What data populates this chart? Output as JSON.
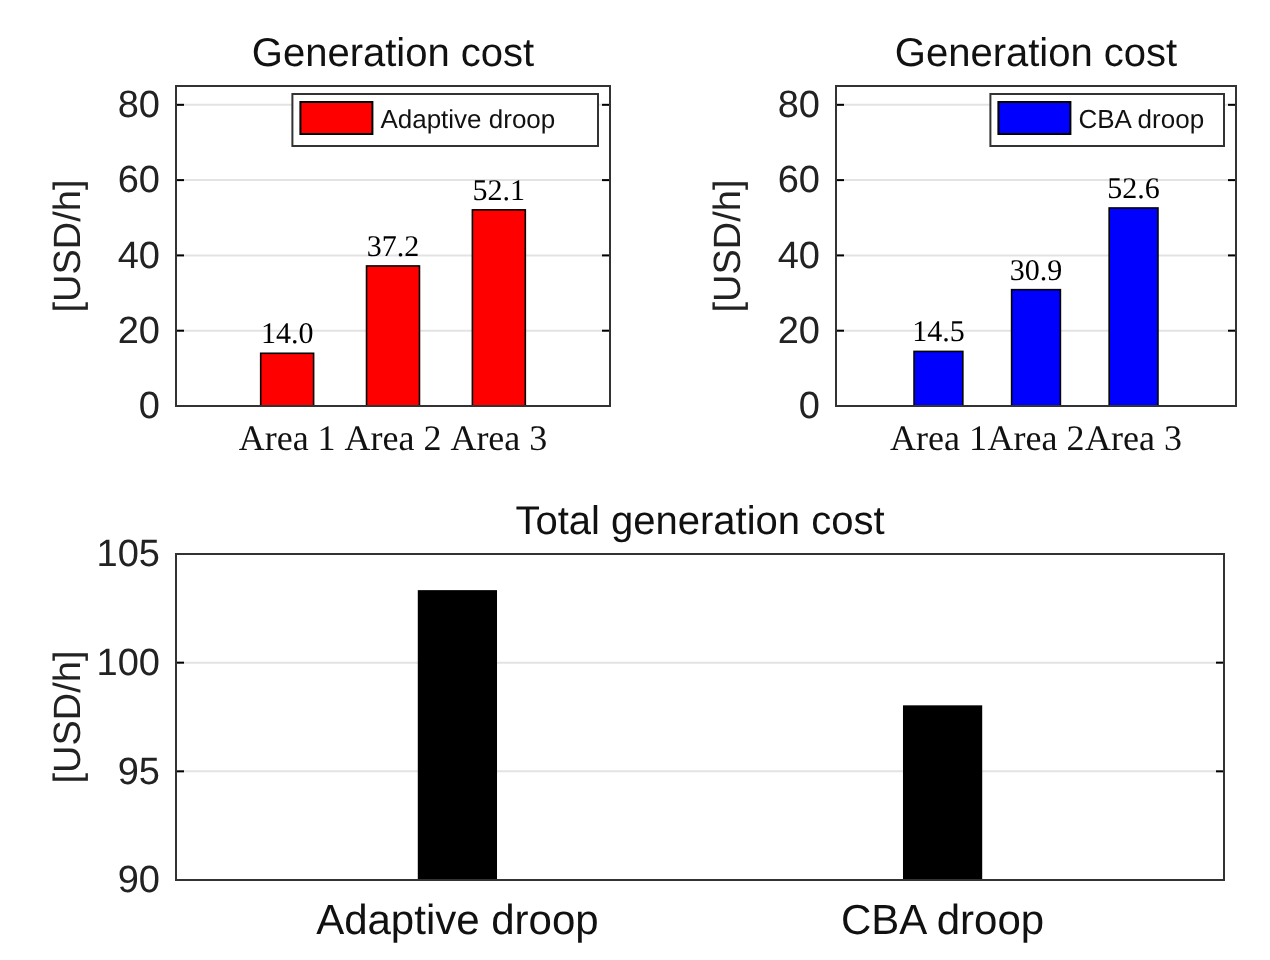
{
  "chart_data": [
    {
      "type": "bar",
      "title": "Generation cost",
      "ylabel": "[USD/h]",
      "categories": [
        "Area 1",
        "Area 2",
        "Area 3"
      ],
      "series": [
        {
          "name": "Adaptive droop",
          "color": "#ff0000",
          "values": [
            14.0,
            37.2,
            52.1
          ],
          "value_labels": [
            "14.0",
            "37.2",
            "52.1"
          ]
        }
      ],
      "ylim": [
        0,
        85
      ],
      "yticks": [
        0,
        20,
        40,
        60,
        80
      ],
      "grid": "y",
      "legend": "top right"
    },
    {
      "type": "bar",
      "title": "Generation cost",
      "ylabel": "[USD/h]",
      "categories": [
        "Area 1",
        "Area 2",
        "Area 3"
      ],
      "series": [
        {
          "name": "CBA droop",
          "color": "#0000ff",
          "values": [
            14.5,
            30.9,
            52.6
          ],
          "value_labels": [
            "14.5",
            "30.9",
            "52.6"
          ]
        }
      ],
      "ylim": [
        0,
        85
      ],
      "yticks": [
        0,
        20,
        40,
        60,
        80
      ],
      "grid": "y",
      "legend": "top right"
    },
    {
      "type": "bar",
      "title": "Total generation cost",
      "ylabel": "[USD/h]",
      "categories": [
        "Adaptive droop",
        "CBA droop"
      ],
      "series": [
        {
          "color": "#000000",
          "values": [
            103.3,
            98.0
          ]
        }
      ],
      "ylim": [
        90,
        105
      ],
      "yticks": [
        90,
        95,
        100,
        105
      ],
      "grid": "y"
    }
  ]
}
